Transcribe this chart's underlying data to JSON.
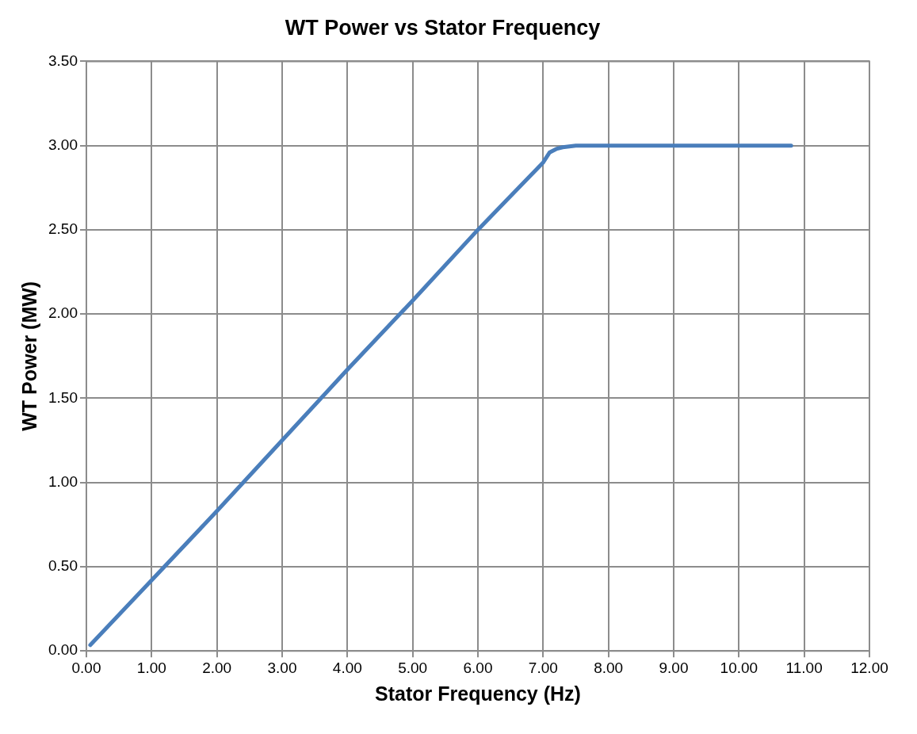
{
  "chart_data": {
    "type": "line",
    "title": "WT Power vs Stator Frequency",
    "xlabel": "Stator Frequency (Hz)",
    "ylabel": "WT Power (MW)",
    "series": [
      {
        "color": "#4a7ebb",
        "x": [
          0.06,
          1,
          2,
          3,
          4,
          5,
          6,
          7,
          7.1,
          7.2,
          7.3,
          7.5,
          8,
          9,
          10,
          10.8
        ],
        "values": [
          0.035,
          0.42,
          0.83,
          1.25,
          1.67,
          2.08,
          2.5,
          2.9,
          2.96,
          2.98,
          2.99,
          3.0,
          3.0,
          3.0,
          3.0,
          3.0
        ]
      }
    ],
    "xlim": [
      0,
      12
    ],
    "ylim": [
      0,
      3.5
    ],
    "xticks": [
      {
        "value": 0,
        "label": "0.00"
      },
      {
        "value": 1,
        "label": "1.00"
      },
      {
        "value": 2,
        "label": "2.00"
      },
      {
        "value": 3,
        "label": "3.00"
      },
      {
        "value": 4,
        "label": "4.00"
      },
      {
        "value": 5,
        "label": "5.00"
      },
      {
        "value": 6,
        "label": "6.00"
      },
      {
        "value": 7,
        "label": "7.00"
      },
      {
        "value": 8,
        "label": "8.00"
      },
      {
        "value": 9,
        "label": "9.00"
      },
      {
        "value": 10,
        "label": "10.00"
      },
      {
        "value": 11,
        "label": "11.00"
      },
      {
        "value": 12,
        "label": "12.00"
      }
    ],
    "yticks": [
      {
        "value": 0,
        "label": "0.00"
      },
      {
        "value": 0.5,
        "label": "0.50"
      },
      {
        "value": 1,
        "label": "1.00"
      },
      {
        "value": 1.5,
        "label": "1.50"
      },
      {
        "value": 2,
        "label": "2.00"
      },
      {
        "value": 2.5,
        "label": "2.50"
      },
      {
        "value": 3,
        "label": "3.00"
      },
      {
        "value": 3.5,
        "label": "3.50"
      }
    ],
    "grid": true,
    "legend": false,
    "marker": "none",
    "line_style": "solid"
  }
}
